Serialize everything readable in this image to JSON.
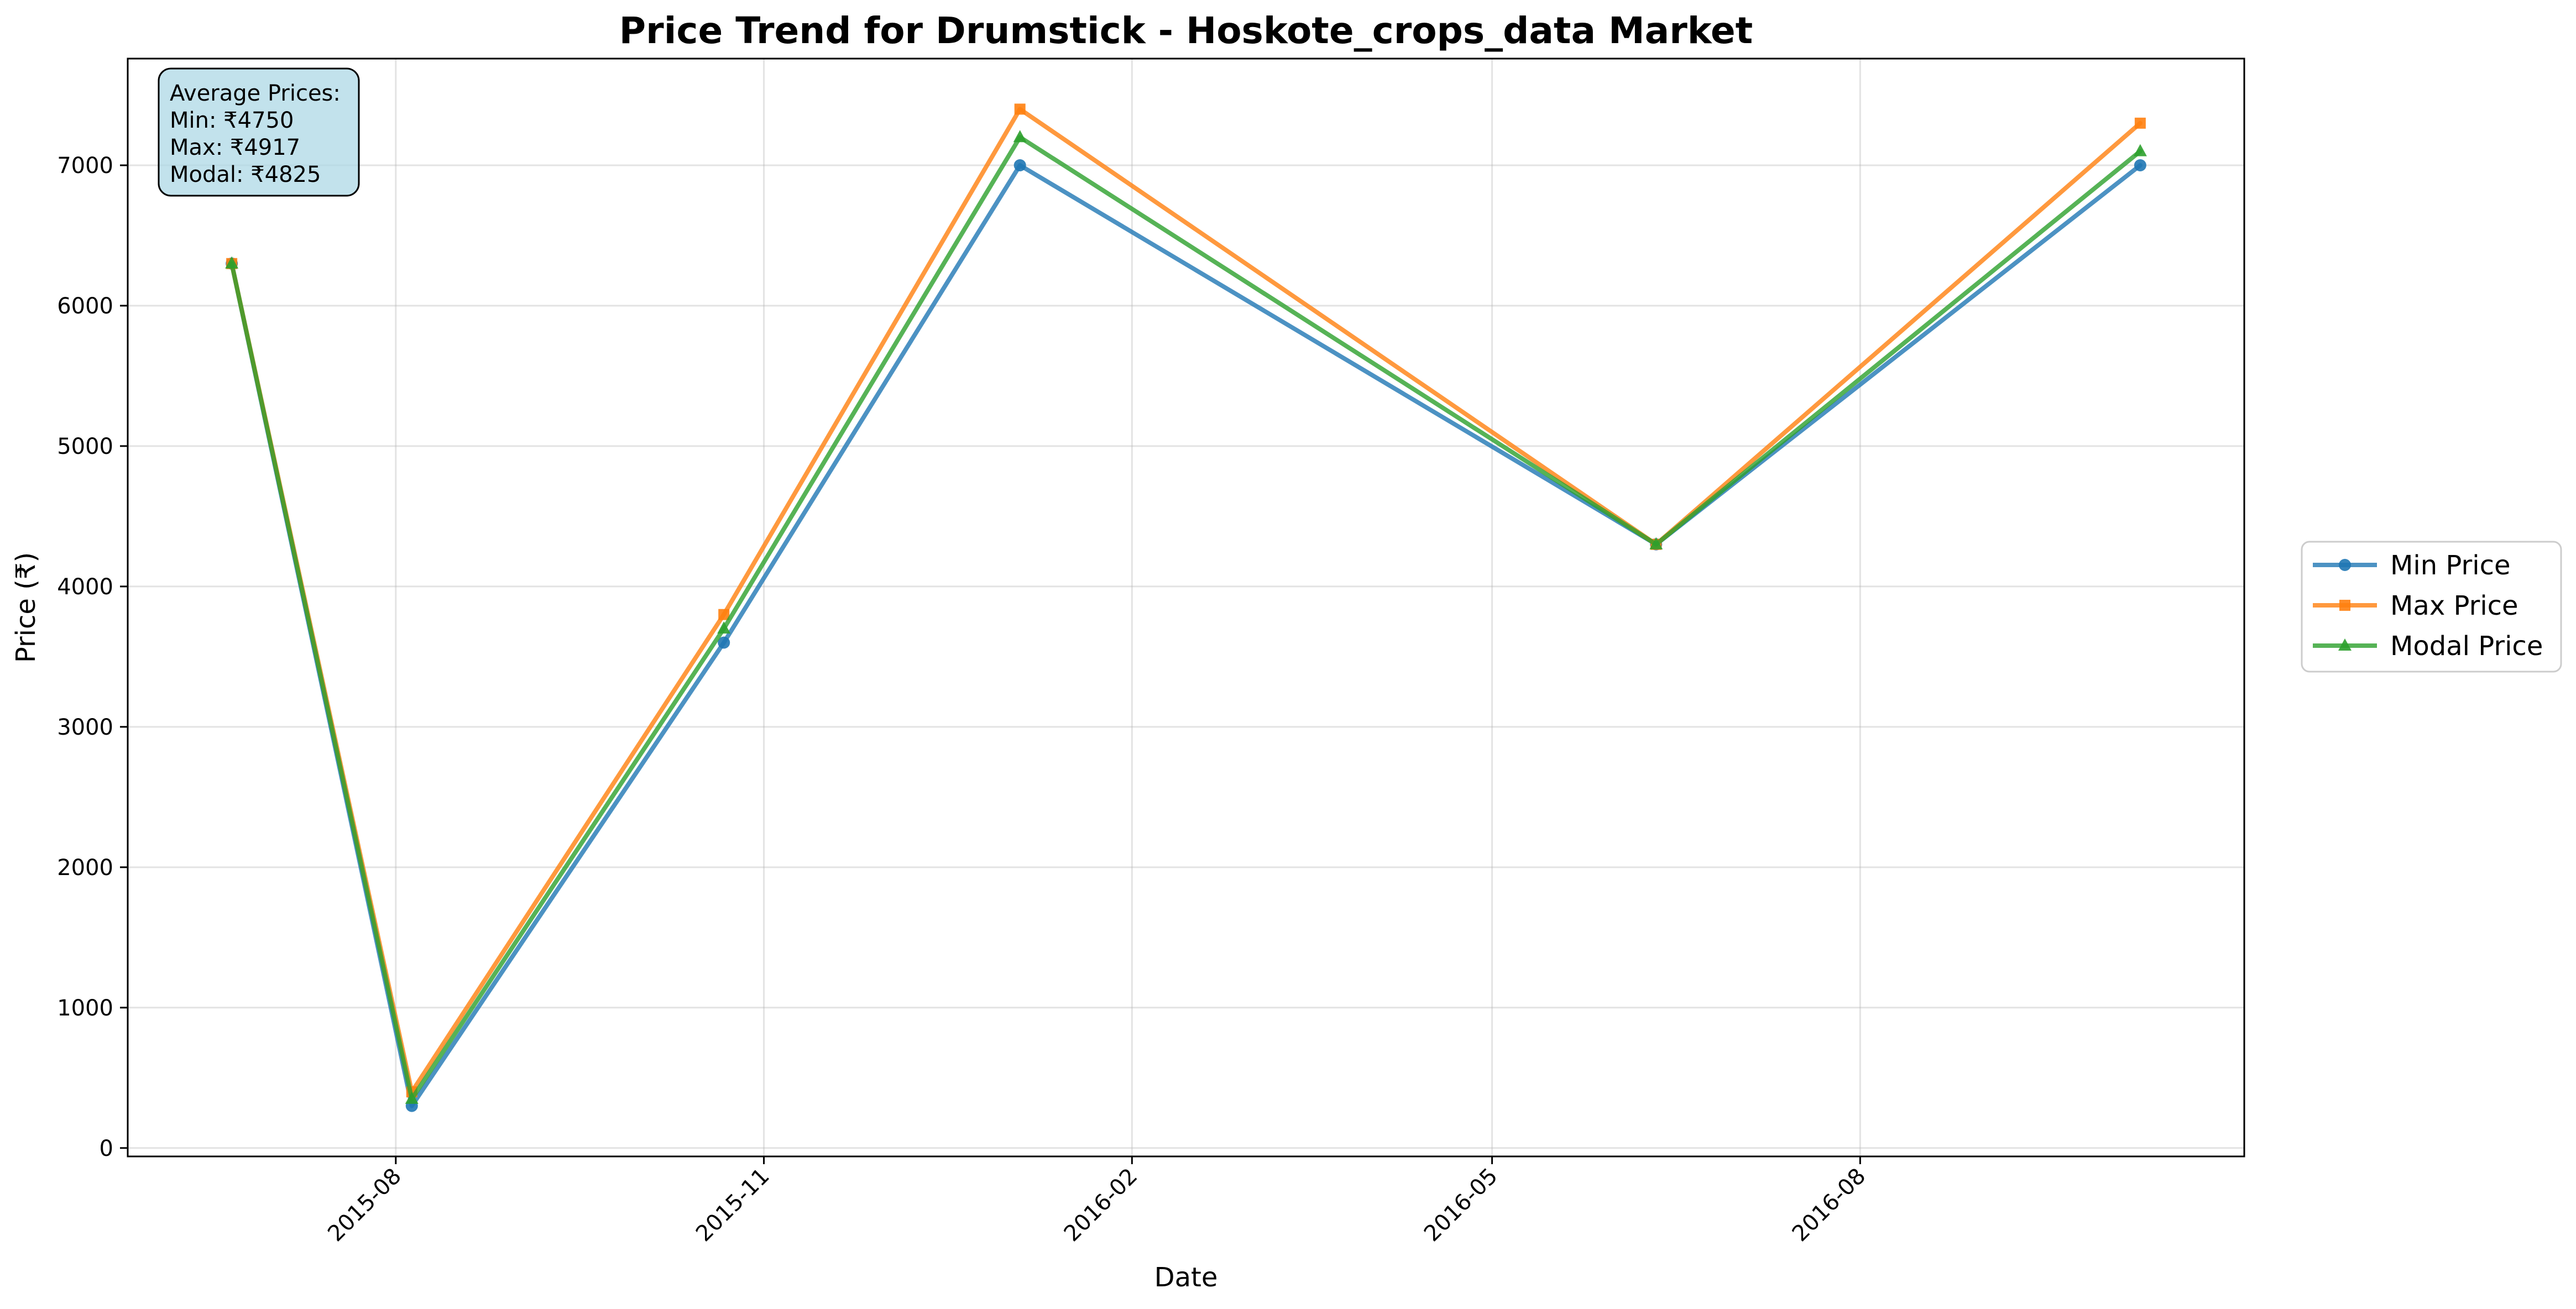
{
  "chart_data": {
    "type": "line",
    "title": "Price Trend for Drumstick - Hoskote_crops_data Market",
    "xlabel": "Date",
    "ylabel": "Price (₹)",
    "x": [
      "2015-06-21",
      "2015-08-05",
      "2015-10-22",
      "2016-01-04",
      "2016-06-11",
      "2016-10-10"
    ],
    "xlim": [
      "2015-05-26",
      "2016-11-05"
    ],
    "ylim": [
      -60,
      7760
    ],
    "x_ticks": [
      "2015-08",
      "2015-11",
      "2016-02",
      "2016-05",
      "2016-08"
    ],
    "x_tick_values": [
      "2015-08-01",
      "2015-11-01",
      "2016-02-01",
      "2016-05-01",
      "2016-08-01"
    ],
    "y_ticks": [
      0,
      1000,
      2000,
      3000,
      4000,
      5000,
      6000,
      7000
    ],
    "grid": true,
    "legend_position": "right-center",
    "series": [
      {
        "name": "Min Price",
        "color": "#1f77b4",
        "marker": "circle",
        "values": [
          6300,
          300,
          3600,
          7000,
          4300,
          7000
        ]
      },
      {
        "name": "Max Price",
        "color": "#ff7f0e",
        "marker": "square",
        "values": [
          6300,
          400,
          3800,
          7400,
          4300,
          7300
        ]
      },
      {
        "name": "Modal Price",
        "color": "#2ca02c",
        "marker": "triangle",
        "values": [
          6300,
          350,
          3700,
          7200,
          4300,
          7100
        ]
      }
    ],
    "annotation": {
      "lines": [
        "Average Prices:",
        "Min: ₹4750",
        "Max: ₹4917",
        "Modal: ₹4825"
      ],
      "background": "#add8e6"
    }
  }
}
